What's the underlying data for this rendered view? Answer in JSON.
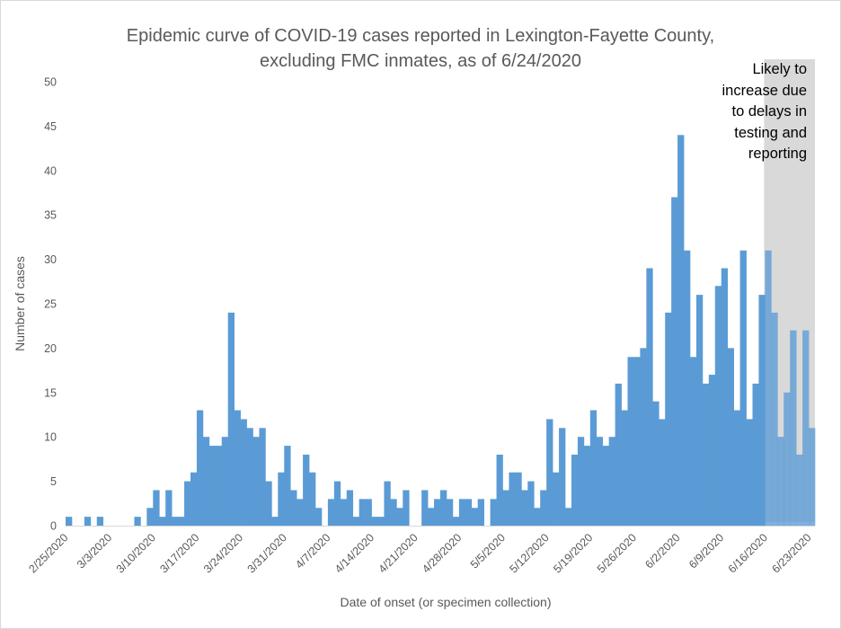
{
  "chart_data": {
    "type": "bar",
    "title_lines": [
      "Epidemic curve of COVID-19 cases reported in Lexington-Fayette County,",
      "excluding FMC inmates, as of 6/24/2020"
    ],
    "xlabel": "Date of onset (or specimen collection)",
    "ylabel": "Number of cases",
    "ylim": [
      0,
      50
    ],
    "y_ticks": [
      0,
      5,
      10,
      15,
      20,
      25,
      30,
      35,
      40,
      45,
      50
    ],
    "x_tick_labels": [
      "2/25/2020",
      "3/3/2020",
      "3/10/2020",
      "3/17/2020",
      "3/24/2020",
      "3/31/2020",
      "4/7/2020",
      "4/14/2020",
      "4/21/2020",
      "4/28/2020",
      "5/5/2020",
      "5/12/2020",
      "5/19/2020",
      "5/26/2020",
      "6/2/2020",
      "6/9/2020",
      "6/16/2020",
      "6/23/2020"
    ],
    "x_start": "2/25/2020",
    "x_end": "6/23/2020",
    "bar_color": "#5b9bd5",
    "grid": false,
    "values": [
      1,
      0,
      0,
      1,
      0,
      1,
      0,
      0,
      0,
      0,
      0,
      1,
      0,
      2,
      4,
      1,
      4,
      1,
      1,
      5,
      6,
      13,
      10,
      9,
      9,
      10,
      24,
      13,
      12,
      11,
      10,
      11,
      5,
      1,
      6,
      9,
      4,
      3,
      8,
      6,
      2,
      0,
      3,
      5,
      3,
      4,
      1,
      3,
      3,
      1,
      1,
      5,
      3,
      2,
      4,
      0,
      0,
      4,
      2,
      3,
      4,
      3,
      1,
      3,
      3,
      2,
      3,
      0,
      3,
      8,
      4,
      6,
      6,
      4,
      5,
      2,
      4,
      12,
      6,
      11,
      2,
      8,
      10,
      9,
      13,
      10,
      9,
      10,
      16,
      13,
      19,
      19,
      20,
      29,
      14,
      12,
      24,
      37,
      44,
      31,
      19,
      26,
      16,
      17,
      27,
      29,
      20,
      13,
      31,
      12,
      16,
      26,
      31,
      24,
      10,
      15,
      22,
      8,
      22,
      11
    ],
    "shaded_region": {
      "start": "6/16/2020",
      "end": "6/23/2020",
      "color": "#d9d9d9"
    },
    "annotation": "Likely to increase due to delays in testing and reporting",
    "annotation_lines": [
      "Likely to",
      "increase due",
      "to delays in",
      "testing and",
      "reporting"
    ]
  }
}
